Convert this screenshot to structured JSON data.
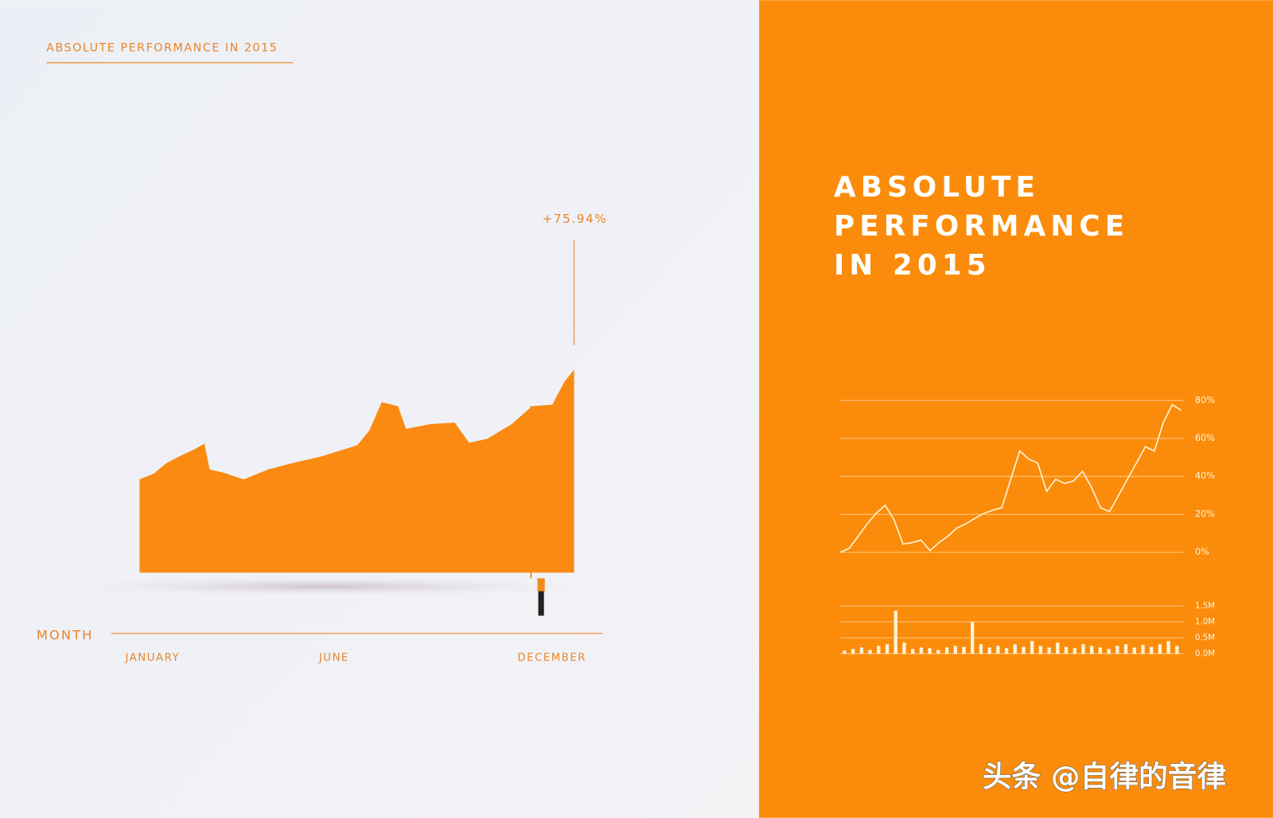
{
  "header": {
    "title": "ABSOLUTE PERFORMANCE IN 2015"
  },
  "panel": {
    "title_lines": [
      "ABSOLUTE",
      "PERFORMANCE",
      "IN 2015"
    ]
  },
  "watermark": "头条 @自律的音律",
  "chart_data": [
    {
      "type": "area",
      "color": "#fb8a12",
      "x_label": "MONTH",
      "annotation": "+75.94%",
      "x": [
        0.64,
        1.04,
        1.38,
        1.72,
        2.16,
        2.43,
        2.57,
        2.95,
        3.51,
        4.18,
        4.85,
        5.63,
        6.64,
        6.97,
        7.31,
        7.76,
        7.98,
        8.65,
        9.32,
        9.72,
        10.22,
        10.89,
        11.45,
        12.01,
        12.34,
        12.61
      ],
      "values": [
        34.9,
        37.1,
        41.0,
        43.4,
        46.2,
        48.3,
        38.6,
        37.4,
        34.9,
        38.6,
        41.0,
        43.4,
        47.7,
        53.2,
        63.8,
        62.3,
        53.8,
        55.6,
        56.2,
        48.6,
        50.1,
        55.6,
        62.3,
        62.9,
        71.4,
        75.94
      ],
      "xlim": [
        -0.14,
        13.39
      ],
      "ylim": [
        0,
        100
      ],
      "xticks": [
        {
          "value": 1,
          "label": "JANUARY"
        },
        {
          "value": 6,
          "label": "JUNE"
        },
        {
          "value": 12,
          "label": "DECEMBER"
        }
      ]
    },
    {
      "type": "line",
      "color": "#fff4d8",
      "grid": true,
      "values": [
        0,
        2.1,
        8.5,
        15.0,
        20.5,
        24.8,
        17.1,
        4.3,
        5.1,
        6.4,
        0.9,
        5.1,
        8.5,
        12.8,
        15.0,
        17.9,
        20.5,
        22.2,
        23.5,
        38.5,
        53.4,
        49.1,
        47.0,
        32.1,
        38.5,
        36.3,
        37.6,
        42.7,
        34.2,
        23.5,
        21.4,
        29.9,
        38.5,
        47.0,
        55.6,
        53.4,
        68.4,
        77.8,
        74.8
      ],
      "ylim": [
        0,
        80
      ],
      "yticks": [
        {
          "value": 0,
          "label": "0%"
        },
        {
          "value": 20,
          "label": "20%"
        },
        {
          "value": 40,
          "label": "40%"
        },
        {
          "value": 60,
          "label": "60%"
        },
        {
          "value": 80,
          "label": "80%"
        }
      ]
    },
    {
      "type": "bar",
      "color": "#fff4d8",
      "grid": true,
      "values": [
        0.1,
        0.15,
        0.2,
        0.12,
        0.25,
        0.3,
        1.35,
        0.35,
        0.15,
        0.2,
        0.18,
        0.12,
        0.2,
        0.25,
        0.22,
        1.0,
        0.3,
        0.2,
        0.25,
        0.18,
        0.3,
        0.22,
        0.4,
        0.25,
        0.2,
        0.35,
        0.22,
        0.18,
        0.3,
        0.25,
        0.2,
        0.15,
        0.25,
        0.3,
        0.2,
        0.28,
        0.22,
        0.3,
        0.4,
        0.25
      ],
      "ylim": [
        0,
        1.5
      ],
      "yticks": [
        {
          "value": 0,
          "label": "0.0M"
        },
        {
          "value": 0.5,
          "label": "0.5M"
        },
        {
          "value": 1,
          "label": "1.0M"
        },
        {
          "value": 1.5,
          "label": "1.5M"
        }
      ]
    }
  ]
}
